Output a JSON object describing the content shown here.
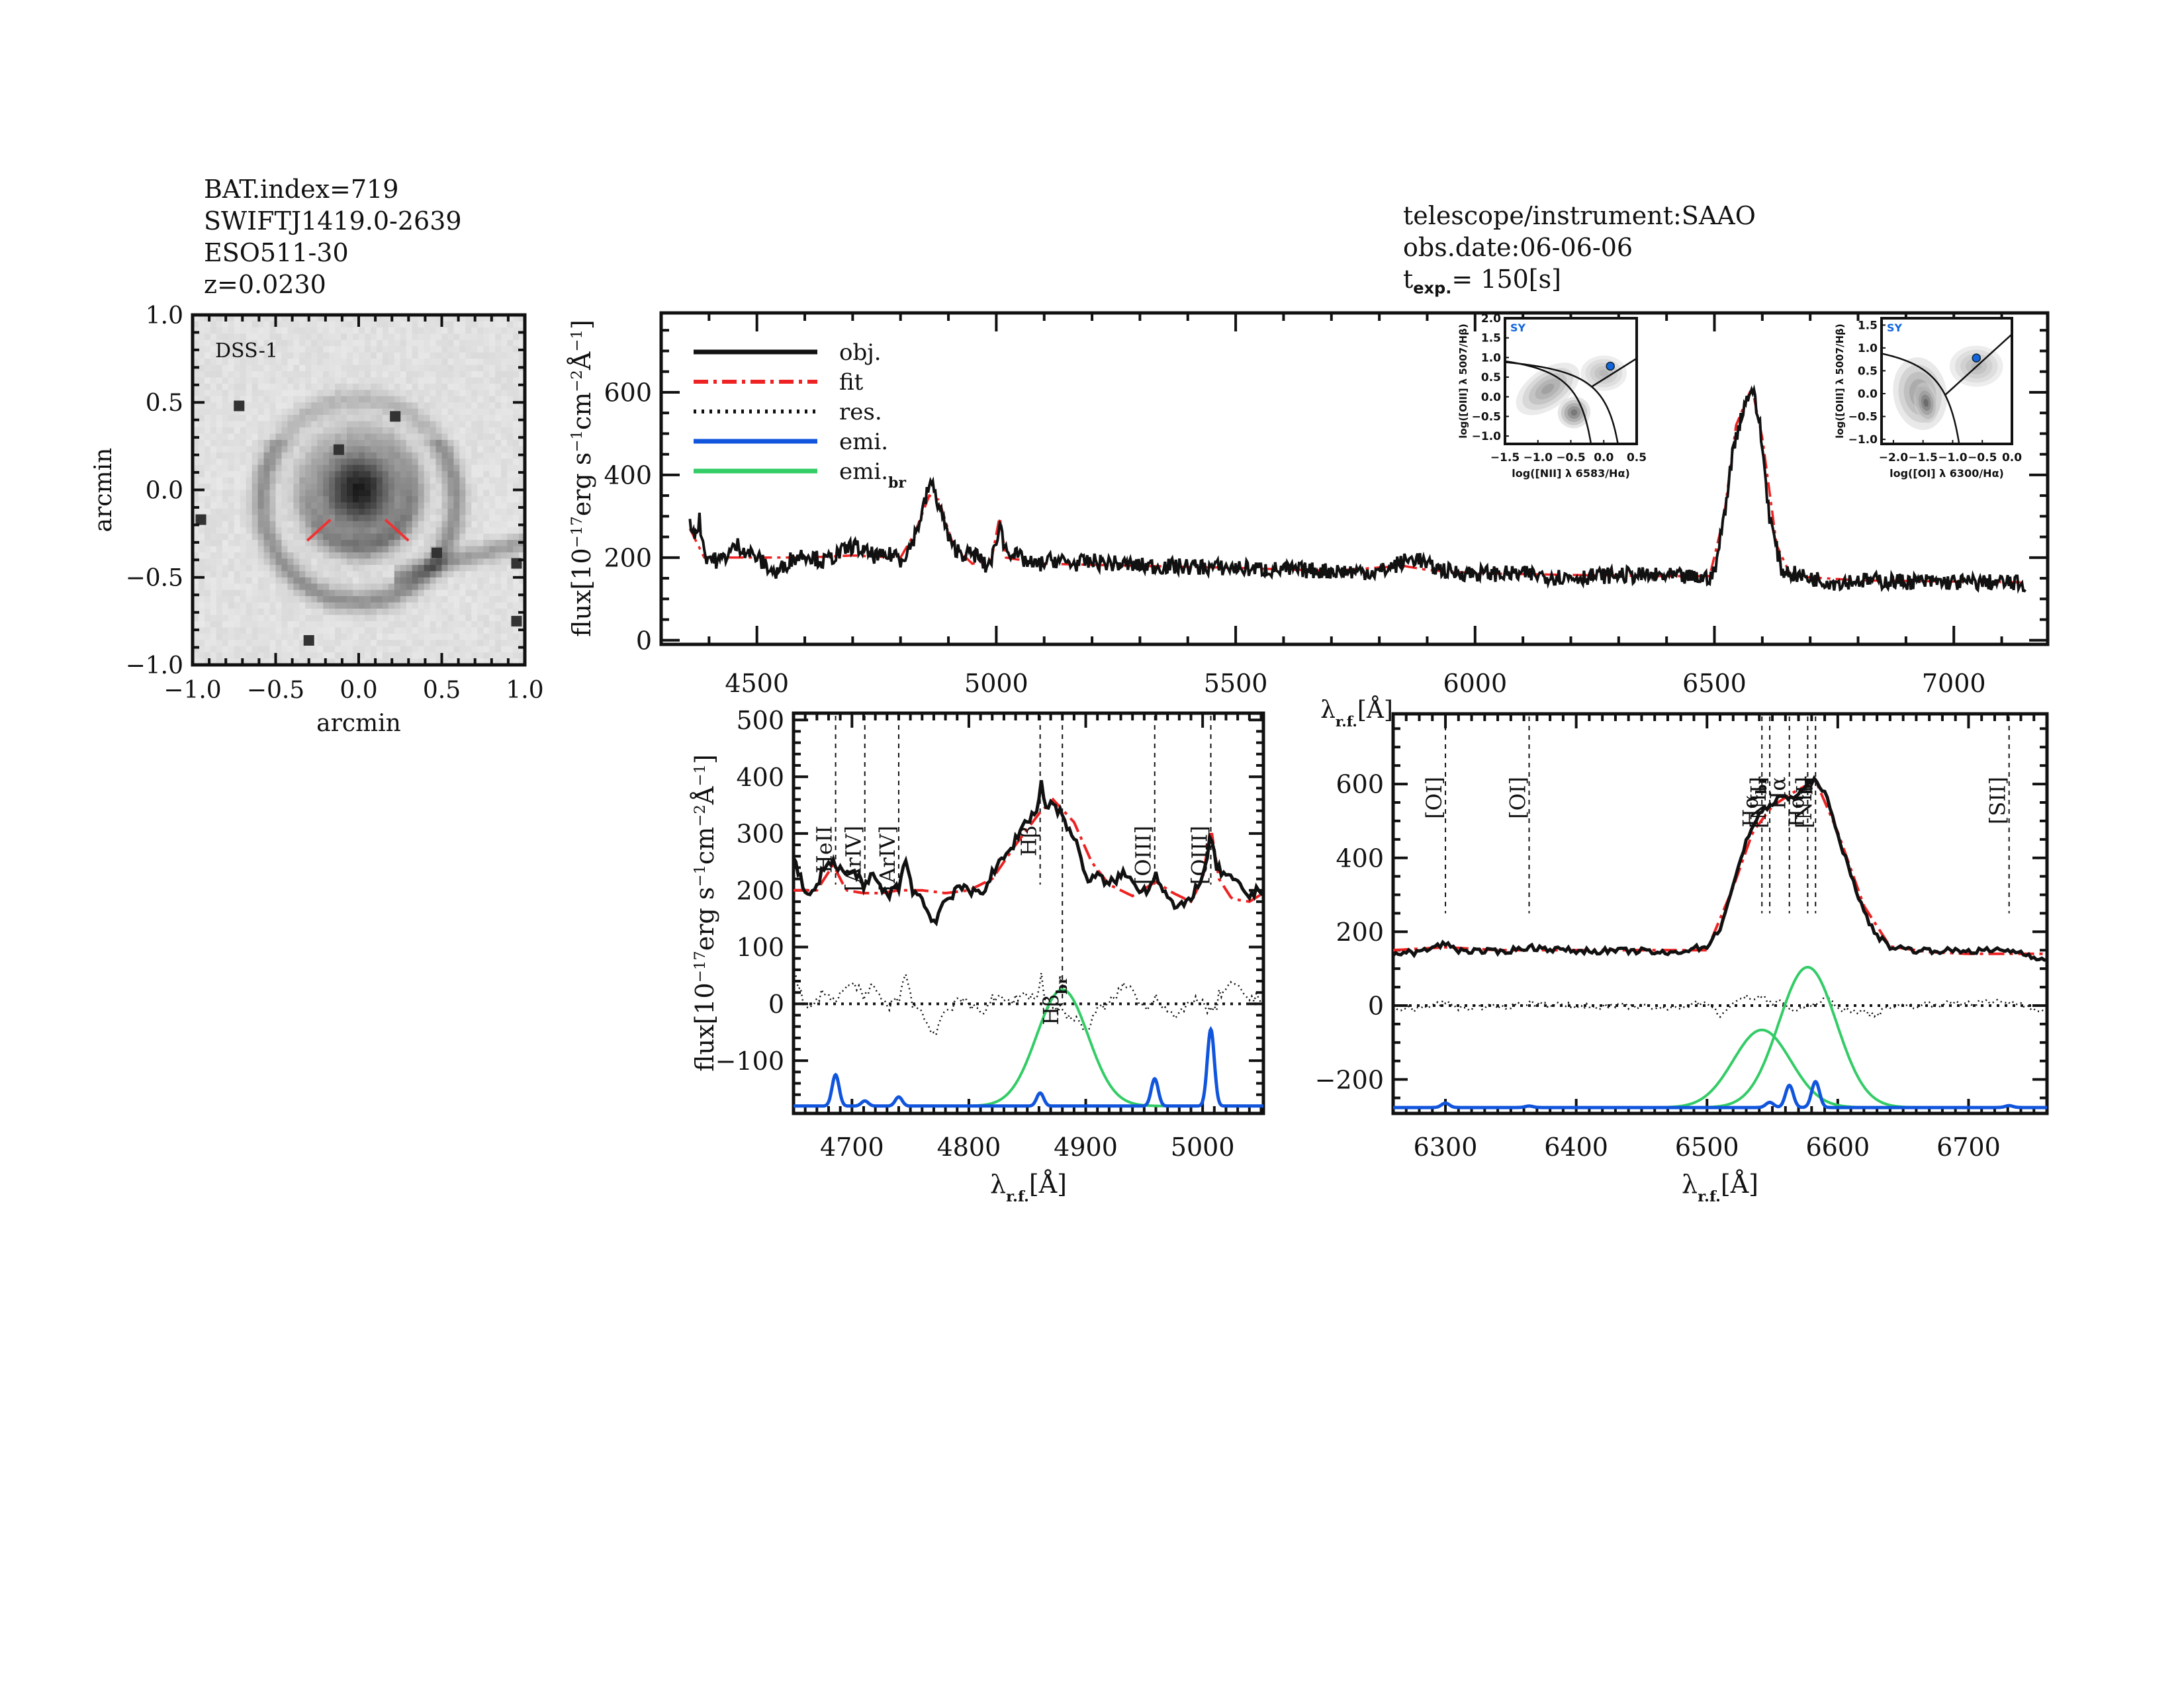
{
  "header_left": [
    "BAT.index=719",
    "SWIFTJ1419.0-2639",
    "ESO511-30",
    "z=0.0230"
  ],
  "header_right": {
    "telescope": "telescope/instrument:SAAO",
    "obs_date": "obs.date:06-06-06",
    "texp_prefix": "t",
    "texp_sub": "exp.",
    "texp_value": "=  150[s]"
  },
  "colors": {
    "obj": "#111111",
    "fit": "#ee2222",
    "res": "#111111",
    "emi": "#1155dd",
    "emi_br": "#33cc66",
    "red_label": "#ee2222",
    "sy": "#1166dd"
  },
  "chart_data": [
    {
      "id": "dss_image",
      "type": "heatmap",
      "title": "DSS-1",
      "xlabel": "arcmin",
      "ylabel": "arcmin",
      "xlim": [
        -1.0,
        1.0
      ],
      "ylim": [
        -1.0,
        1.0
      ],
      "xticks": [
        "-1.0",
        "-0.5",
        "0.0",
        "0.5",
        "1.0"
      ],
      "yticks": [
        "-1.0",
        "-0.5",
        "0.0",
        "0.5",
        "1.0"
      ],
      "description": "grayscale spiral galaxy with bright nucleus; red slit markers near center",
      "slit_marks": [
        [
          -0.17,
          -0.17,
          -0.31,
          -0.29
        ],
        [
          0.16,
          -0.17,
          0.3,
          -0.29
        ]
      ]
    },
    {
      "id": "full_spectrum",
      "type": "line",
      "xlabel": "λr.f.[Å]",
      "ylabel": "flux[10^-17 erg s^-1 cm^-2 Å^-1]",
      "xlim": [
        4300,
        7196
      ],
      "ylim": [
        -10,
        792
      ],
      "xticks": [
        4500,
        5000,
        5500,
        6000,
        6500,
        7000
      ],
      "yticks": [
        0,
        200,
        400,
        600
      ],
      "legend": [
        {
          "label": "obj.",
          "style": "solid",
          "color": "#111111"
        },
        {
          "label": "fit",
          "style": "dashdot",
          "color": "#ee2222"
        },
        {
          "label": "res.",
          "style": "dotted",
          "color": "#111111"
        },
        {
          "label": "emi.",
          "style": "solid",
          "color": "#1155dd"
        },
        {
          "label": "emi.",
          "sub": "br",
          "style": "solid",
          "color": "#33cc66"
        }
      ],
      "legend_position": "top-left",
      "obj_knots": [
        [
          4360,
          280
        ],
        [
          4372,
          260
        ],
        [
          4380,
          290
        ],
        [
          4392,
          205
        ],
        [
          4420,
          190
        ],
        [
          4460,
          230
        ],
        [
          4500,
          200
        ],
        [
          4540,
          160
        ],
        [
          4570,
          195
        ],
        [
          4600,
          210
        ],
        [
          4640,
          190
        ],
        [
          4680,
          215
        ],
        [
          4700,
          230
        ],
        [
          4730,
          210
        ],
        [
          4760,
          200
        ],
        [
          4790,
          210
        ],
        [
          4800,
          195
        ],
        [
          4820,
          225
        ],
        [
          4835,
          270
        ],
        [
          4850,
          330
        ],
        [
          4862,
          385
        ],
        [
          4875,
          345
        ],
        [
          4890,
          290
        ],
        [
          4905,
          230
        ],
        [
          4930,
          210
        ],
        [
          4960,
          205
        ],
        [
          4980,
          175
        ],
        [
          5000,
          225
        ],
        [
          5007,
          300
        ],
        [
          5015,
          230
        ],
        [
          5040,
          205
        ],
        [
          5080,
          180
        ],
        [
          5120,
          195
        ],
        [
          5160,
          185
        ],
        [
          5200,
          190
        ],
        [
          5250,
          185
        ],
        [
          5300,
          180
        ],
        [
          5400,
          178
        ],
        [
          5500,
          175
        ],
        [
          5600,
          170
        ],
        [
          5700,
          168
        ],
        [
          5800,
          165
        ],
        [
          5850,
          190
        ],
        [
          5880,
          200
        ],
        [
          5900,
          180
        ],
        [
          5950,
          165
        ],
        [
          6000,
          162
        ],
        [
          6100,
          160
        ],
        [
          6200,
          152
        ],
        [
          6300,
          158
        ],
        [
          6400,
          155
        ],
        [
          6480,
          150
        ],
        [
          6500,
          160
        ],
        [
          6520,
          300
        ],
        [
          6540,
          470
        ],
        [
          6560,
          560
        ],
        [
          6578,
          615
        ],
        [
          6595,
          520
        ],
        [
          6615,
          300
        ],
        [
          6640,
          170
        ],
        [
          6680,
          155
        ],
        [
          6750,
          140
        ],
        [
          6800,
          145
        ],
        [
          6900,
          142
        ],
        [
          7000,
          140
        ],
        [
          7100,
          140
        ],
        [
          7150,
          135
        ]
      ],
      "fit_knots": [
        [
          4360,
          270
        ],
        [
          4390,
          200
        ],
        [
          4500,
          200
        ],
        [
          4600,
          200
        ],
        [
          4700,
          205
        ],
        [
          4800,
          200
        ],
        [
          4830,
          260
        ],
        [
          4860,
          350
        ],
        [
          4880,
          340
        ],
        [
          4910,
          230
        ],
        [
          4950,
          185
        ],
        [
          4990,
          195
        ],
        [
          5007,
          300
        ],
        [
          5020,
          200
        ],
        [
          5100,
          185
        ],
        [
          5300,
          180
        ],
        [
          5500,
          175
        ],
        [
          5700,
          168
        ],
        [
          5850,
          180
        ],
        [
          5900,
          170
        ],
        [
          6000,
          162
        ],
        [
          6200,
          158
        ],
        [
          6400,
          155
        ],
        [
          6490,
          155
        ],
        [
          6520,
          300
        ],
        [
          6545,
          520
        ],
        [
          6578,
          612
        ],
        [
          6600,
          490
        ],
        [
          6630,
          230
        ],
        [
          6660,
          155
        ],
        [
          6800,
          145
        ],
        [
          7000,
          142
        ],
        [
          7150,
          140
        ]
      ]
    },
    {
      "id": "bpt_nii",
      "type": "scatter",
      "label": "SY",
      "xlabel": "log([NII] λ 6583/Hα)",
      "ylabel": "log([OIII] λ 5007/Hβ)",
      "xlim": [
        -1.5,
        0.5
      ],
      "ylim": [
        -1.2,
        2.0
      ],
      "xticks": [
        "-1.5",
        "-1.0",
        "-0.5",
        "0.0",
        "0.5"
      ],
      "yticks": [
        "-1.0",
        "-0.5",
        "0.0",
        "0.5",
        "1.0",
        "1.5",
        "2.0"
      ],
      "point": [
        0.1,
        0.78
      ]
    },
    {
      "id": "bpt_oi",
      "type": "scatter",
      "label": "SY",
      "xlabel": "log([OI] λ 6300/Hα)",
      "ylabel": "log([OIII] λ 5007/Hβ)",
      "xlim": [
        -2.2,
        0.0
      ],
      "ylim": [
        -1.1,
        1.65
      ],
      "xticks": [
        "-2.0",
        "-1.5",
        "-1.0",
        "-0.5",
        "0.0"
      ],
      "yticks": [
        "-1.0",
        "-0.5",
        "0.0",
        "0.5",
        "1.0",
        "1.5"
      ],
      "point": [
        -0.6,
        0.78
      ]
    },
    {
      "id": "hbeta_zoom",
      "type": "line",
      "xlabel": "λr.f.[Å]",
      "ylabel": "flux[10^-17 erg s^-1 cm^-2 Å^-1]",
      "xlim": [
        4650,
        5052
      ],
      "ylim": [
        -193,
        512
      ],
      "xticks": [
        4700,
        4800,
        4900,
        5000
      ],
      "yticks": [
        -100,
        0,
        100,
        200,
        300,
        400,
        500
      ],
      "lines": [
        {
          "label": "HeII",
          "x": 4686,
          "color": "black"
        },
        {
          "label": "[ArIV]",
          "x": 4711,
          "color": "red"
        },
        {
          "label": "[ArIV]",
          "x": 4740,
          "color": "black"
        },
        {
          "label": "Hβ",
          "x": 4861,
          "color": "black"
        },
        {
          "label": "Hβbr",
          "x": 4880,
          "color": "black",
          "below": true
        },
        {
          "label": "[OIII]",
          "x": 4959,
          "color": "black"
        },
        {
          "label": "[OIII]",
          "x": 5007,
          "color": "black"
        }
      ],
      "obj_knots": [
        [
          4650,
          255
        ],
        [
          4655,
          230
        ],
        [
          4660,
          190
        ],
        [
          4668,
          195
        ],
        [
          4675,
          240
        ],
        [
          4682,
          250
        ],
        [
          4690,
          240
        ],
        [
          4697,
          225
        ],
        [
          4703,
          235
        ],
        [
          4710,
          200
        ],
        [
          4718,
          230
        ],
        [
          4725,
          200
        ],
        [
          4732,
          195
        ],
        [
          4740,
          205
        ],
        [
          4745,
          260
        ],
        [
          4752,
          200
        ],
        [
          4760,
          185
        ],
        [
          4765,
          160
        ],
        [
          4772,
          145
        ],
        [
          4778,
          180
        ],
        [
          4785,
          190
        ],
        [
          4790,
          210
        ],
        [
          4800,
          195
        ],
        [
          4812,
          200
        ],
        [
          4822,
          235
        ],
        [
          4835,
          270
        ],
        [
          4848,
          320
        ],
        [
          4858,
          340
        ],
        [
          4862,
          390
        ],
        [
          4866,
          345
        ],
        [
          4872,
          355
        ],
        [
          4880,
          330
        ],
        [
          4888,
          300
        ],
        [
          4895,
          265
        ],
        [
          4902,
          215
        ],
        [
          4910,
          225
        ],
        [
          4920,
          210
        ],
        [
          4932,
          230
        ],
        [
          4945,
          205
        ],
        [
          4952,
          200
        ],
        [
          4960,
          230
        ],
        [
          4968,
          195
        ],
        [
          4978,
          165
        ],
        [
          4985,
          175
        ],
        [
          4995,
          205
        ],
        [
          5003,
          240
        ],
        [
          5007,
          300
        ],
        [
          5012,
          240
        ],
        [
          5020,
          225
        ],
        [
          5030,
          210
        ],
        [
          5040,
          190
        ],
        [
          5052,
          205
        ]
      ],
      "fit_knots": [
        [
          4650,
          200
        ],
        [
          4670,
          200
        ],
        [
          4684,
          245
        ],
        [
          4695,
          200
        ],
        [
          4710,
          195
        ],
        [
          4725,
          195
        ],
        [
          4740,
          200
        ],
        [
          4760,
          200
        ],
        [
          4780,
          195
        ],
        [
          4800,
          200
        ],
        [
          4820,
          220
        ],
        [
          4840,
          280
        ],
        [
          4860,
          335
        ],
        [
          4872,
          360
        ],
        [
          4890,
          320
        ],
        [
          4905,
          250
        ],
        [
          4920,
          210
        ],
        [
          4940,
          190
        ],
        [
          4960,
          215
        ],
        [
          4975,
          195
        ],
        [
          4990,
          180
        ],
        [
          5000,
          220
        ],
        [
          5007,
          312
        ],
        [
          5014,
          220
        ],
        [
          5025,
          185
        ],
        [
          5040,
          180
        ],
        [
          5052,
          195
        ]
      ],
      "emi_lines": [
        [
          4686,
          55,
          3
        ],
        [
          4711,
          9,
          3
        ],
        [
          4740,
          16,
          3
        ],
        [
          4861,
          23,
          3
        ],
        [
          4959,
          48,
          3
        ],
        [
          5007,
          135,
          3
        ]
      ],
      "emi_br_lines": [
        [
          4880,
          205,
          22
        ]
      ],
      "emi_baseline": -180
    },
    {
      "id": "halpha_zoom",
      "type": "line",
      "xlabel": "λr.f.[Å]",
      "ylabel": "",
      "xlim": [
        6260,
        6760
      ],
      "ylim": [
        -292,
        790
      ],
      "xticks": [
        6300,
        6400,
        6500,
        6600,
        6700
      ],
      "yticks": [
        -200,
        0,
        200,
        400,
        600
      ],
      "lines": [
        {
          "label": "[OI]",
          "x": 6300,
          "color": "black"
        },
        {
          "label": "[OI]",
          "x": 6364,
          "color": "red"
        },
        {
          "label": "Hαbr",
          "x": 6542,
          "color": "black"
        },
        {
          "label": "[NII]",
          "x": 6548,
          "color": "black"
        },
        {
          "label": "Hα",
          "x": 6563,
          "color": "black"
        },
        {
          "label": "Hαbr",
          "x": 6577,
          "color": "black"
        },
        {
          "label": "[NII]",
          "x": 6583,
          "color": "black"
        },
        {
          "label": "[SII]",
          "x": 6731,
          "color": "red"
        }
      ],
      "obj_knots": [
        [
          6260,
          140
        ],
        [
          6280,
          145
        ],
        [
          6300,
          168
        ],
        [
          6310,
          150
        ],
        [
          6340,
          145
        ],
        [
          6365,
          158
        ],
        [
          6400,
          148
        ],
        [
          6450,
          148
        ],
        [
          6470,
          140
        ],
        [
          6490,
          155
        ],
        [
          6500,
          160
        ],
        [
          6510,
          210
        ],
        [
          6520,
          320
        ],
        [
          6530,
          450
        ],
        [
          6540,
          520
        ],
        [
          6550,
          545
        ],
        [
          6558,
          570
        ],
        [
          6565,
          560
        ],
        [
          6575,
          590
        ],
        [
          6583,
          612
        ],
        [
          6590,
          580
        ],
        [
          6600,
          460
        ],
        [
          6610,
          360
        ],
        [
          6620,
          250
        ],
        [
          6630,
          190
        ],
        [
          6640,
          160
        ],
        [
          6660,
          150
        ],
        [
          6700,
          148
        ],
        [
          6730,
          150
        ],
        [
          6745,
          140
        ],
        [
          6760,
          120
        ]
      ],
      "fit_knots": [
        [
          6260,
          150
        ],
        [
          6300,
          158
        ],
        [
          6340,
          150
        ],
        [
          6400,
          150
        ],
        [
          6500,
          150
        ],
        [
          6520,
          320
        ],
        [
          6535,
          470
        ],
        [
          6550,
          540
        ],
        [
          6565,
          575
        ],
        [
          6583,
          610
        ],
        [
          6600,
          470
        ],
        [
          6620,
          270
        ],
        [
          6640,
          160
        ],
        [
          6670,
          145
        ],
        [
          6700,
          140
        ],
        [
          6760,
          140
        ]
      ],
      "emi_lines": [
        [
          6300,
          12,
          3
        ],
        [
          6364,
          4,
          3
        ],
        [
          6548,
          14,
          3
        ],
        [
          6563,
          60,
          3
        ],
        [
          6583,
          70,
          3
        ],
        [
          6731,
          5,
          3
        ]
      ],
      "emi_br_lines": [
        [
          6542,
          210,
          22
        ],
        [
          6577,
          380,
          22
        ]
      ],
      "emi_baseline": -276
    }
  ]
}
